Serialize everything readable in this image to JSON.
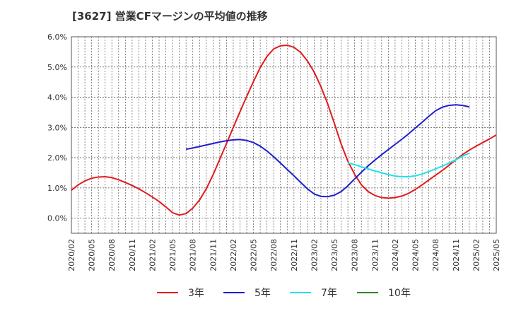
{
  "chart_data": {
    "type": "line",
    "title": "[3627]  営業CFマージンの平均値の推移",
    "xlabel": "",
    "ylabel": "",
    "ylim": [
      -0.5,
      6.0
    ],
    "y_ticks": [
      "6.0%",
      "5.0%",
      "4.0%",
      "3.0%",
      "2.0%",
      "1.0%",
      "0.0%"
    ],
    "y_tick_values": [
      6,
      5,
      4,
      3,
      2,
      1,
      0
    ],
    "x_tick_labels": [
      "2020/02",
      "2020/05",
      "2020/08",
      "2020/11",
      "2021/02",
      "2021/05",
      "2021/08",
      "2021/11",
      "2022/02",
      "2022/05",
      "2022/08",
      "2022/11",
      "2023/02",
      "2023/05",
      "2023/08",
      "2023/11",
      "2024/02",
      "2024/05",
      "2024/08",
      "2024/11",
      "2025/02",
      "2025/05"
    ],
    "grid": true,
    "legend_position": "bottom",
    "series": [
      {
        "name": "3年",
        "color": "#e31a1c",
        "start": "2020/02",
        "values": [
          0.92,
          1.1,
          1.23,
          1.32,
          1.36,
          1.37,
          1.34,
          1.27,
          1.18,
          1.08,
          0.97,
          0.84,
          0.7,
          0.55,
          0.37,
          0.18,
          0.1,
          0.15,
          0.33,
          0.6,
          0.97,
          1.43,
          1.95,
          2.47,
          3.0,
          3.52,
          4.03,
          4.52,
          4.98,
          5.35,
          5.6,
          5.7,
          5.72,
          5.65,
          5.48,
          5.2,
          4.83,
          4.35,
          3.78,
          3.13,
          2.45,
          1.88,
          1.45,
          1.1,
          0.88,
          0.75,
          0.68,
          0.66,
          0.68,
          0.73,
          0.82,
          0.95,
          1.1,
          1.26,
          1.42,
          1.58,
          1.75,
          1.93,
          2.1,
          2.25,
          2.38,
          2.5,
          2.62,
          2.75
        ]
      },
      {
        "name": "5年",
        "color": "#1f1fd0",
        "start": "2021/07",
        "values": [
          2.28,
          2.32,
          2.37,
          2.42,
          2.47,
          2.52,
          2.56,
          2.59,
          2.6,
          2.57,
          2.5,
          2.38,
          2.22,
          2.03,
          1.82,
          1.61,
          1.4,
          1.18,
          0.97,
          0.8,
          0.72,
          0.71,
          0.76,
          0.88,
          1.07,
          1.3,
          1.52,
          1.73,
          1.92,
          2.1,
          2.27,
          2.44,
          2.61,
          2.79,
          2.98,
          3.17,
          3.37,
          3.55,
          3.67,
          3.73,
          3.75,
          3.73,
          3.68
        ]
      },
      {
        "name": "7年",
        "color": "#22e0e8",
        "start": "2023/07",
        "values": [
          1.83,
          1.77,
          1.7,
          1.63,
          1.56,
          1.5,
          1.44,
          1.39,
          1.37,
          1.37,
          1.4,
          1.46,
          1.54,
          1.63,
          1.72,
          1.82,
          1.93,
          2.05,
          2.15
        ]
      },
      {
        "name": "10年",
        "color": "#2e8b2e",
        "start": "",
        "values": []
      }
    ]
  }
}
